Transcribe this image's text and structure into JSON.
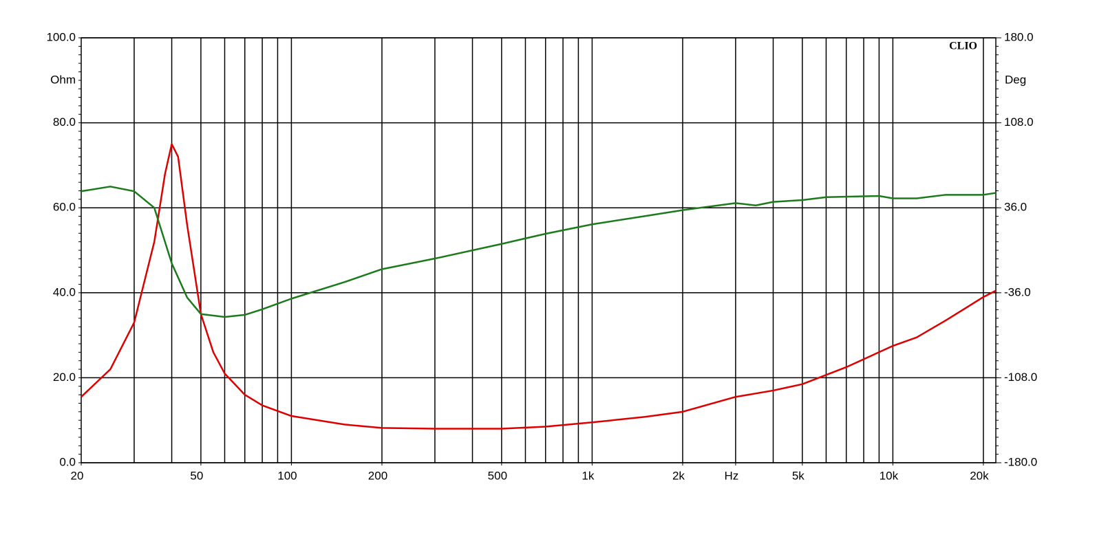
{
  "chart_data": {
    "type": "line",
    "brand": "CLIO",
    "y_label": "Ohm",
    "y2_label": "Deg",
    "x_unit_label": "Hz",
    "xscale": "log",
    "grid": true,
    "xlim": [
      20,
      22000
    ],
    "ylim": [
      0,
      100
    ],
    "y2lim": [
      -180,
      180
    ],
    "xticks": [
      20,
      50,
      100,
      200,
      500,
      {
        "value": 1000,
        "label": "1k"
      },
      {
        "value": 2000,
        "label": "2k"
      },
      {
        "value": 3000,
        "label": "Hz"
      },
      {
        "value": 5000,
        "label": "5k"
      },
      {
        "value": 10000,
        "label": "10k"
      },
      {
        "value": 20000,
        "label": "20k"
      }
    ],
    "xgrid": [
      30,
      40,
      50,
      60,
      70,
      80,
      90,
      100,
      200,
      300,
      400,
      500,
      600,
      700,
      800,
      900,
      1000,
      2000,
      3000,
      4000,
      5000,
      6000,
      7000,
      8000,
      9000,
      10000,
      20000
    ],
    "yticks": [
      {
        "value": 0,
        "label": "0.0"
      },
      {
        "value": 20,
        "label": "20.0"
      },
      {
        "value": 40,
        "label": "40.0"
      },
      {
        "value": 60,
        "label": "60.0"
      },
      {
        "value": 80,
        "label": "80.0"
      },
      {
        "value": 100,
        "label": "100.0"
      }
    ],
    "y2ticks": [
      {
        "value": -180,
        "label": "-180.0"
      },
      {
        "value": -108,
        "label": "-108.0"
      },
      {
        "value": -36,
        "label": "-36.0"
      },
      {
        "value": 36,
        "label": "36.0"
      },
      {
        "value": 108,
        "label": "108.0"
      },
      {
        "value": 180,
        "label": "180.0"
      }
    ],
    "series": [
      {
        "color": "#dd0000",
        "axis": "y",
        "x": [
          20,
          25,
          30,
          35,
          38,
          40,
          42,
          45,
          50,
          55,
          60,
          70,
          80,
          100,
          150,
          200,
          300,
          500,
          700,
          1000,
          1500,
          2000,
          3000,
          4000,
          5000,
          7000,
          10000,
          12000,
          15000,
          20000,
          22000
        ],
        "values": [
          15.5,
          22,
          33,
          52,
          68,
          75,
          72,
          56,
          35,
          26,
          21,
          16,
          13.5,
          11,
          9,
          8.2,
          8,
          8,
          8.5,
          9.5,
          10.8,
          12,
          15.5,
          17,
          18.5,
          22.5,
          27.5,
          29.5,
          33.5,
          39,
          40.5
        ]
      },
      {
        "color": "#1b7a1b",
        "axis": "y2",
        "x": [
          20,
          25,
          30,
          35,
          40,
          45,
          50,
          60,
          70,
          80,
          100,
          150,
          200,
          300,
          500,
          700,
          1000,
          1500,
          2000,
          3000,
          3500,
          4000,
          5000,
          6000,
          9000,
          10000,
          12000,
          15000,
          20000,
          22000
        ],
        "values": [
          50,
          54,
          50,
          36,
          -11,
          -40,
          -54,
          -56.5,
          -54.7,
          -50,
          -41,
          -27,
          -16,
          -7,
          5.4,
          14,
          22,
          29,
          34,
          40,
          38,
          41,
          42.5,
          45,
          46,
          44,
          44,
          47,
          47,
          48.6
        ]
      }
    ]
  }
}
